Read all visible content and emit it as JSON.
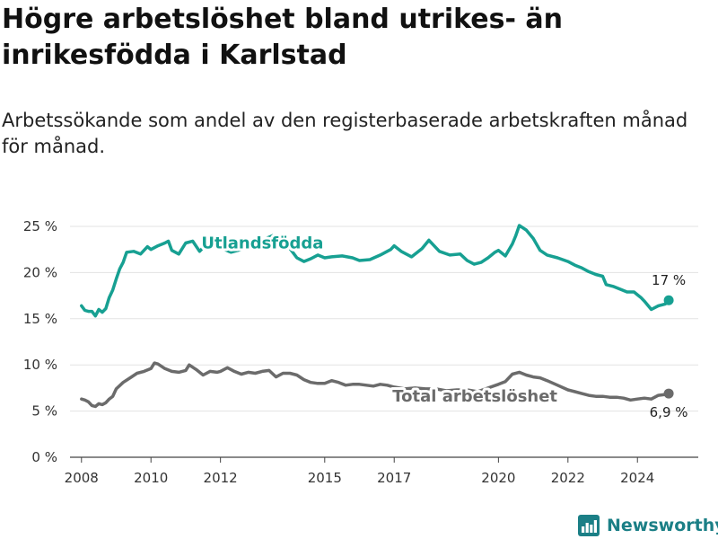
{
  "chart_data": {
    "type": "line",
    "title": "Högre arbetslöshet bland utrikes- än inrikesfödda i Karlstad",
    "subtitle": "Arbetssökande som andel av den registerbaserade arbetskraften månad för månad.",
    "xlabel": "",
    "ylabel": "",
    "xlim": [
      2007.67,
      2025.75
    ],
    "ylim": [
      0,
      25
    ],
    "yticks": [
      0,
      5,
      10,
      15,
      20,
      25
    ],
    "ytick_labels": [
      "0 %",
      "5 %",
      "10 %",
      "15 %",
      "20 %",
      "25 %"
    ],
    "xticks": [
      2008,
      2010,
      2012,
      2015,
      2017,
      2020,
      2022,
      2024
    ],
    "xtick_labels": [
      "2008",
      "2010",
      "2012",
      "2015",
      "2017",
      "2020",
      "2022",
      "2024"
    ],
    "grid": "horizontal",
    "legend": "none",
    "series": [
      {
        "name": "Utlandsfödda",
        "color": "#17a092",
        "end_label": "17 %",
        "end_value": 17,
        "x": [
          2008.0,
          2008.1,
          2008.2,
          2008.3,
          2008.4,
          2008.5,
          2008.6,
          2008.7,
          2008.8,
          2008.9,
          2009.0,
          2009.1,
          2009.2,
          2009.3,
          2009.5,
          2009.7,
          2009.9,
          2010.0,
          2010.2,
          2010.4,
          2010.5,
          2010.6,
          2010.8,
          2011.0,
          2011.2,
          2011.4,
          2011.6,
          2011.8,
          2012.0,
          2012.3,
          2012.6,
          2012.9,
          2013.2,
          2013.5,
          2013.8,
          2014.0,
          2014.2,
          2014.4,
          2014.6,
          2014.8,
          2015.0,
          2015.2,
          2015.5,
          2015.8,
          2016.0,
          2016.3,
          2016.6,
          2016.9,
          2017.0,
          2017.2,
          2017.5,
          2017.8,
          2018.0,
          2018.3,
          2018.6,
          2018.9,
          2019.1,
          2019.3,
          2019.5,
          2019.7,
          2019.9,
          2020.0,
          2020.2,
          2020.4,
          2020.5,
          2020.6,
          2020.8,
          2021.0,
          2021.2,
          2021.4,
          2021.7,
          2022.0,
          2022.2,
          2022.4,
          2022.6,
          2022.8,
          2023.0,
          2023.1,
          2023.3,
          2023.5,
          2023.7,
          2023.9,
          2024.0,
          2024.1,
          2024.2,
          2024.4,
          2024.6,
          2024.8,
          2024.9
        ],
        "values": [
          16.4,
          15.9,
          15.8,
          15.8,
          15.3,
          16.0,
          15.7,
          16.1,
          17.3,
          18.1,
          19.3,
          20.4,
          21.1,
          22.2,
          22.3,
          22.0,
          22.8,
          22.5,
          22.9,
          23.2,
          23.4,
          22.4,
          22.0,
          23.2,
          23.4,
          22.3,
          23.1,
          22.9,
          22.7,
          22.2,
          22.5,
          23.0,
          23.5,
          24.0,
          23.3,
          22.6,
          21.6,
          21.2,
          21.5,
          21.9,
          21.6,
          21.7,
          21.8,
          21.6,
          21.3,
          21.4,
          21.9,
          22.5,
          22.9,
          22.3,
          21.7,
          22.6,
          23.5,
          22.3,
          21.9,
          22.0,
          21.3,
          20.9,
          21.1,
          21.6,
          22.2,
          22.4,
          21.8,
          23.1,
          24.0,
          25.1,
          24.6,
          23.7,
          22.4,
          21.9,
          21.6,
          21.2,
          20.8,
          20.5,
          20.1,
          19.8,
          19.6,
          18.7,
          18.5,
          18.2,
          17.9,
          17.9,
          17.6,
          17.3,
          16.9,
          16.0,
          16.4,
          16.6,
          17.0
        ]
      },
      {
        "name": "Total arbetslöshet",
        "color": "#6b6b6b",
        "end_label": "6,9 %",
        "end_value": 6.9,
        "x": [
          2008.0,
          2008.1,
          2008.2,
          2008.3,
          2008.4,
          2008.5,
          2008.6,
          2008.7,
          2008.8,
          2008.9,
          2009.0,
          2009.2,
          2009.4,
          2009.6,
          2009.8,
          2010.0,
          2010.1,
          2010.2,
          2010.4,
          2010.6,
          2010.8,
          2011.0,
          2011.1,
          2011.3,
          2011.5,
          2011.7,
          2011.9,
          2012.0,
          2012.2,
          2012.4,
          2012.6,
          2012.8,
          2013.0,
          2013.2,
          2013.4,
          2013.6,
          2013.8,
          2014.0,
          2014.2,
          2014.4,
          2014.6,
          2014.8,
          2015.0,
          2015.2,
          2015.4,
          2015.6,
          2015.8,
          2016.0,
          2016.2,
          2016.4,
          2016.6,
          2016.8,
          2017.0,
          2017.3,
          2017.6,
          2017.9,
          2018.2,
          2018.5,
          2018.8,
          2019.1,
          2019.4,
          2019.7,
          2020.0,
          2020.2,
          2020.4,
          2020.6,
          2020.8,
          2021.0,
          2021.2,
          2021.4,
          2021.7,
          2022.0,
          2022.2,
          2022.4,
          2022.6,
          2022.8,
          2023.0,
          2023.2,
          2023.4,
          2023.6,
          2023.8,
          2024.0,
          2024.2,
          2024.4,
          2024.6,
          2024.8,
          2024.9
        ],
        "values": [
          6.3,
          6.2,
          6.0,
          5.6,
          5.5,
          5.8,
          5.7,
          5.9,
          6.3,
          6.6,
          7.4,
          8.1,
          8.6,
          9.1,
          9.3,
          9.6,
          10.2,
          10.1,
          9.6,
          9.3,
          9.2,
          9.4,
          10.0,
          9.5,
          8.9,
          9.3,
          9.2,
          9.3,
          9.7,
          9.3,
          9.0,
          9.2,
          9.1,
          9.3,
          9.4,
          8.7,
          9.1,
          9.1,
          8.9,
          8.4,
          8.1,
          8.0,
          8.0,
          8.3,
          8.1,
          7.8,
          7.9,
          7.9,
          7.8,
          7.7,
          7.9,
          7.8,
          7.6,
          7.4,
          7.5,
          7.4,
          7.4,
          7.2,
          7.3,
          7.3,
          7.1,
          7.5,
          7.9,
          8.2,
          9.0,
          9.2,
          8.9,
          8.7,
          8.6,
          8.3,
          7.8,
          7.3,
          7.1,
          6.9,
          6.7,
          6.6,
          6.6,
          6.5,
          6.5,
          6.4,
          6.2,
          6.3,
          6.4,
          6.3,
          6.7,
          6.8,
          6.9
        ]
      }
    ]
  },
  "brand": {
    "name": "Newsworthy",
    "icon": "bar-chart-logo-icon",
    "color": "#1b7f86"
  }
}
